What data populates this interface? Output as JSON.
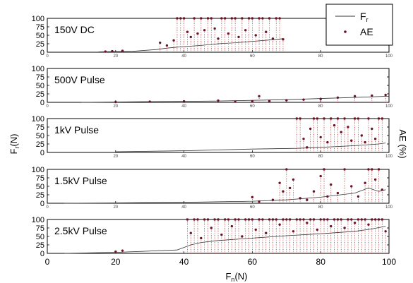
{
  "figure": {
    "y_axis_left_label": "F",
    "y_axis_left_sub": "r",
    "y_axis_left_unit": "(N)",
    "y_axis_right_label": "AE (%)",
    "x_axis_label": "F",
    "x_axis_sub": "n",
    "x_axis_unit": "(N)",
    "legend": {
      "line_label": "F",
      "line_sub": "r",
      "dot_label": "AE"
    },
    "colors": {
      "line": "#333333",
      "dots": "#6b1226",
      "dotted": "#b03a3a",
      "frame": "#000000"
    }
  },
  "chart_data": [
    {
      "type": "line",
      "title": "150V DC",
      "xlim": [
        0,
        100
      ],
      "ylim": [
        0,
        100
      ],
      "x_ticks": [
        0,
        20,
        40,
        60,
        80,
        100
      ],
      "y_ticks": [
        0,
        25,
        50,
        75,
        100
      ],
      "series": [
        {
          "name": "Fr",
          "kind": "line",
          "x": [
            15,
            25,
            32,
            35,
            38,
            42,
            45,
            50,
            55,
            60,
            65,
            69
          ],
          "y": [
            1,
            3,
            8,
            12,
            15,
            18,
            20,
            25,
            28,
            32,
            36,
            40
          ]
        },
        {
          "name": "AE",
          "kind": "dots",
          "x": [
            17,
            19,
            22,
            33,
            35,
            37,
            38,
            39,
            40,
            41,
            42,
            43,
            44,
            45,
            46,
            47,
            48,
            49,
            50,
            51,
            52,
            53,
            54,
            55,
            56,
            57,
            58,
            59,
            60,
            61,
            62,
            63,
            64,
            65,
            66,
            67,
            68,
            69
          ],
          "y": [
            2,
            3,
            4,
            28,
            20,
            35,
            100,
            100,
            100,
            60,
            45,
            100,
            55,
            100,
            65,
            100,
            100,
            70,
            40,
            100,
            100,
            55,
            100,
            100,
            45,
            100,
            65,
            100,
            100,
            50,
            100,
            100,
            60,
            100,
            40,
            100,
            100,
            38
          ]
        }
      ]
    },
    {
      "type": "line",
      "title": "500V Pulse",
      "xlim": [
        0,
        100
      ],
      "ylim": [
        0,
        100
      ],
      "x_ticks": [
        0,
        20,
        40,
        60,
        80,
        100
      ],
      "y_ticks": [
        0,
        25,
        50,
        75,
        100
      ],
      "series": [
        {
          "name": "Fr",
          "kind": "line",
          "x": [
            10,
            30,
            50,
            70,
            85,
            100
          ],
          "y": [
            0,
            2,
            4,
            8,
            13,
            18
          ]
        },
        {
          "name": "AE",
          "kind": "dots",
          "x": [
            20,
            30,
            40,
            50,
            55,
            60,
            62,
            65,
            70,
            75,
            80,
            85,
            90,
            95,
            99
          ],
          "y": [
            1,
            2,
            3,
            5,
            2,
            3,
            18,
            4,
            6,
            8,
            10,
            14,
            18,
            20,
            22
          ]
        }
      ]
    },
    {
      "type": "line",
      "title": "1kV Pulse",
      "xlim": [
        0,
        100
      ],
      "ylim": [
        0,
        100
      ],
      "x_ticks": [
        20,
        40,
        60,
        80,
        100
      ],
      "y_ticks": [
        0,
        25,
        50,
        75,
        100
      ],
      "series": [
        {
          "name": "Fr",
          "kind": "line",
          "x": [
            20,
            40,
            60,
            73,
            80,
            90,
            97,
            99
          ],
          "y": [
            2,
            5,
            10,
            12,
            15,
            20,
            25,
            28
          ]
        },
        {
          "name": "AE",
          "kind": "dots",
          "x": [
            73,
            74,
            75,
            76,
            77,
            78,
            79,
            80,
            81,
            82,
            83,
            84,
            85,
            86,
            87,
            88,
            89,
            90,
            91,
            92,
            93,
            94,
            95,
            96,
            97,
            98
          ],
          "y": [
            100,
            100,
            40,
            15,
            70,
            100,
            100,
            45,
            100,
            30,
            100,
            80,
            100,
            60,
            100,
            75,
            35,
            100,
            100,
            50,
            30,
            100,
            70,
            40,
            100,
            100
          ]
        }
      ]
    },
    {
      "type": "line",
      "title": "1.5kV Pulse",
      "xlim": [
        0,
        100
      ],
      "ylim": [
        0,
        100
      ],
      "x_ticks": [
        0,
        20,
        40,
        60,
        80,
        100
      ],
      "y_ticks": [
        0,
        25,
        50,
        75,
        100
      ],
      "series": [
        {
          "name": "Fr",
          "kind": "line",
          "x": [
            5,
            20,
            40,
            60,
            70,
            80,
            90,
            94,
            97,
            99
          ],
          "y": [
            0,
            1,
            3,
            6,
            10,
            18,
            30,
            45,
            35,
            40
          ]
        },
        {
          "name": "AE",
          "kind": "dots",
          "x": [
            60,
            62,
            66,
            68,
            69,
            70,
            71,
            72,
            74,
            76,
            78,
            80,
            81,
            82,
            83,
            85,
            87,
            89,
            91,
            93,
            94,
            95,
            96,
            97,
            98
          ],
          "y": [
            18,
            5,
            10,
            60,
            35,
            100,
            45,
            70,
            15,
            10,
            35,
            80,
            100,
            20,
            55,
            30,
            100,
            50,
            20,
            60,
            100,
            100,
            70,
            100,
            40
          ]
        }
      ]
    },
    {
      "type": "line",
      "title": "2.5kV Pulse",
      "xlim": [
        0,
        100
      ],
      "ylim": [
        0,
        100
      ],
      "x_ticks": [
        0,
        20,
        40,
        60,
        80,
        100
      ],
      "y_ticks": [
        0,
        25,
        50,
        75,
        100
      ],
      "series": [
        {
          "name": "Fr",
          "kind": "line",
          "x": [
            5,
            20,
            38,
            42,
            45,
            50,
            60,
            70,
            80,
            90,
            95,
            99
          ],
          "y": [
            0,
            3,
            10,
            25,
            32,
            38,
            45,
            52,
            58,
            65,
            72,
            80
          ]
        },
        {
          "name": "AE",
          "kind": "dots",
          "x": [
            20,
            22,
            41,
            42,
            43,
            44,
            45,
            46,
            47,
            48,
            49,
            50,
            51,
            52,
            53,
            54,
            55,
            56,
            57,
            58,
            59,
            60,
            61,
            62,
            63,
            64,
            65,
            66,
            67,
            68,
            69,
            70,
            71,
            72,
            73,
            74,
            75,
            76,
            77,
            78,
            79,
            80,
            81,
            82,
            83,
            84,
            85,
            86,
            87,
            88,
            89,
            90,
            91,
            92,
            93,
            94,
            95,
            96,
            97,
            98,
            99
          ],
          "y": [
            5,
            8,
            100,
            60,
            100,
            100,
            45,
            100,
            100,
            75,
            100,
            100,
            55,
            100,
            100,
            80,
            100,
            100,
            50,
            100,
            100,
            100,
            70,
            100,
            100,
            60,
            100,
            100,
            100,
            85,
            100,
            100,
            100,
            65,
            100,
            100,
            100,
            90,
            100,
            100,
            70,
            100,
            100,
            100,
            80,
            100,
            100,
            100,
            75,
            100,
            100,
            90,
            100,
            100,
            100,
            85,
            100,
            100,
            100,
            100,
            65
          ]
        }
      ]
    }
  ]
}
